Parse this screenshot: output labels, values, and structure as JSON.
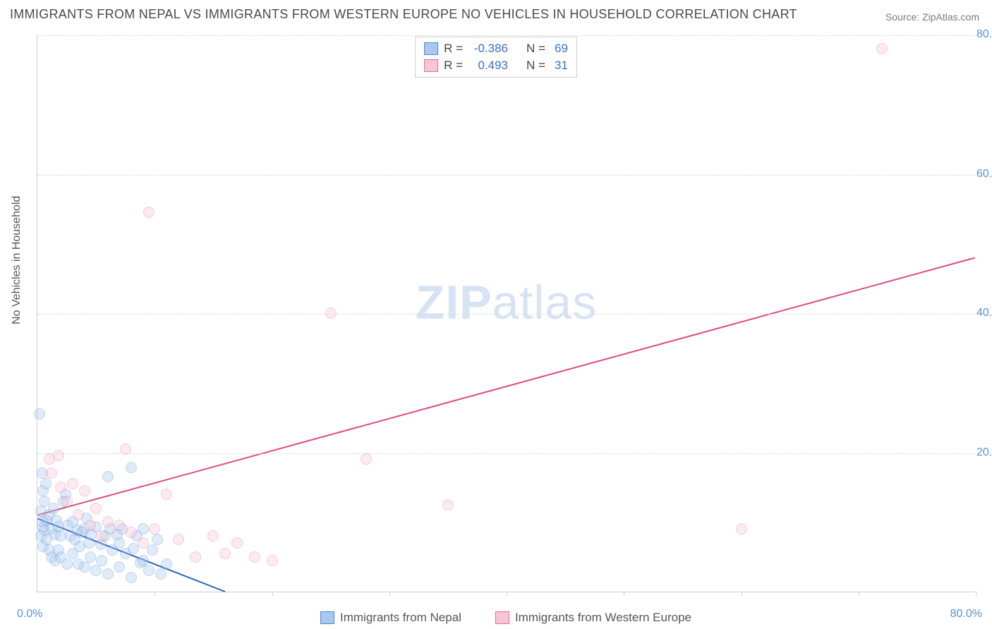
{
  "title": "IMMIGRANTS FROM NEPAL VS IMMIGRANTS FROM WESTERN EUROPE NO VEHICLES IN HOUSEHOLD CORRELATION CHART",
  "source_label": "Source:",
  "source_value": "ZipAtlas.com",
  "ylabel": "No Vehicles in Household",
  "watermark_a": "ZIP",
  "watermark_b": "atlas",
  "chart": {
    "type": "scatter",
    "xlim": [
      0,
      80
    ],
    "ylim": [
      0,
      80
    ],
    "x_origin_label": "0.0%",
    "x_max_label": "80.0%",
    "y_ticks": [
      20,
      40,
      60,
      80
    ],
    "y_tick_labels": [
      "20.0%",
      "40.0%",
      "60.0%",
      "80.0%"
    ],
    "x_minor_ticks": [
      10,
      20,
      30,
      40,
      50,
      60,
      70,
      80
    ],
    "grid_color": "#dcdcdc",
    "axis_color": "#cfcfcf",
    "tick_label_color": "#5b8fd6",
    "background_color": "#ffffff",
    "point_radius": 8,
    "point_opacity": 0.35,
    "line_width": 2,
    "series": [
      {
        "name": "Immigrants from Nepal",
        "color_fill": "#a9c8ef",
        "color_stroke": "#4f86d4",
        "line_color": "#2b5fb5",
        "R": "-0.386",
        "N": "69",
        "trend": {
          "x1": 0,
          "y1": 10.5,
          "x2": 16,
          "y2": 0
        },
        "points": [
          [
            0.2,
            25.5
          ],
          [
            0.4,
            17.0
          ],
          [
            0.5,
            14.5
          ],
          [
            0.6,
            13.0
          ],
          [
            0.7,
            15.5
          ],
          [
            0.3,
            11.5
          ],
          [
            0.4,
            10.0
          ],
          [
            0.5,
            9.2
          ],
          [
            0.6,
            8.8
          ],
          [
            0.8,
            10.2
          ],
          [
            1.0,
            11.0
          ],
          [
            1.2,
            9.0
          ],
          [
            1.4,
            12.0
          ],
          [
            1.5,
            8.2
          ],
          [
            1.6,
            10.2
          ],
          [
            1.8,
            9.3
          ],
          [
            2.0,
            8.0
          ],
          [
            2.2,
            13.0
          ],
          [
            2.4,
            14.0
          ],
          [
            2.6,
            9.5
          ],
          [
            2.8,
            8.0
          ],
          [
            3.0,
            10.0
          ],
          [
            3.2,
            7.5
          ],
          [
            3.4,
            8.8
          ],
          [
            3.6,
            6.5
          ],
          [
            3.8,
            8.5
          ],
          [
            4.0,
            9.0
          ],
          [
            4.2,
            10.5
          ],
          [
            4.4,
            7.0
          ],
          [
            4.6,
            8.2
          ],
          [
            5.0,
            9.3
          ],
          [
            5.4,
            6.8
          ],
          [
            5.8,
            8.0
          ],
          [
            6.0,
            16.5
          ],
          [
            6.2,
            9.0
          ],
          [
            6.4,
            6.0
          ],
          [
            6.8,
            8.2
          ],
          [
            7.0,
            7.0
          ],
          [
            7.2,
            9.0
          ],
          [
            7.5,
            5.5
          ],
          [
            8.0,
            17.8
          ],
          [
            8.2,
            6.2
          ],
          [
            8.5,
            8.0
          ],
          [
            8.8,
            4.2
          ],
          [
            9.0,
            9.0
          ],
          [
            9.5,
            3.0
          ],
          [
            9.8,
            6.0
          ],
          [
            10.2,
            7.5
          ],
          [
            10.5,
            2.5
          ],
          [
            11.0,
            4.0
          ],
          [
            0.3,
            8.0
          ],
          [
            0.5,
            6.5
          ],
          [
            0.8,
            7.5
          ],
          [
            1.0,
            6.0
          ],
          [
            1.2,
            5.0
          ],
          [
            1.5,
            4.5
          ],
          [
            1.8,
            6.0
          ],
          [
            2.0,
            5.0
          ],
          [
            2.5,
            4.0
          ],
          [
            3.0,
            5.5
          ],
          [
            3.5,
            4.0
          ],
          [
            4.0,
            3.5
          ],
          [
            4.5,
            5.0
          ],
          [
            5.0,
            3.0
          ],
          [
            5.5,
            4.5
          ],
          [
            6.0,
            2.5
          ],
          [
            7.0,
            3.5
          ],
          [
            8.0,
            2.0
          ],
          [
            9.0,
            4.5
          ]
        ]
      },
      {
        "name": "Immigrants from Western Europe",
        "color_fill": "#f6c6d4",
        "color_stroke": "#e86a94",
        "line_color": "#e04a7c",
        "R": "0.493",
        "N": "31",
        "trend": {
          "x1": 0,
          "y1": 11,
          "x2": 80,
          "y2": 48
        },
        "points": [
          [
            1.0,
            19.0
          ],
          [
            1.2,
            17.0
          ],
          [
            1.8,
            19.5
          ],
          [
            2.0,
            15.0
          ],
          [
            2.5,
            13.0
          ],
          [
            3.0,
            15.5
          ],
          [
            3.5,
            11.0
          ],
          [
            4.0,
            14.5
          ],
          [
            4.5,
            9.5
          ],
          [
            5.0,
            12.0
          ],
          [
            5.5,
            8.0
          ],
          [
            6.0,
            10.0
          ],
          [
            7.0,
            9.5
          ],
          [
            7.5,
            20.5
          ],
          [
            8.0,
            8.5
          ],
          [
            9.0,
            7.0
          ],
          [
            10.0,
            9.0
          ],
          [
            11.0,
            14.0
          ],
          [
            12.0,
            7.5
          ],
          [
            13.5,
            5.0
          ],
          [
            15.0,
            8.0
          ],
          [
            16.0,
            5.5
          ],
          [
            17.0,
            7.0
          ],
          [
            18.5,
            5.0
          ],
          [
            20.0,
            4.5
          ],
          [
            9.5,
            54.5
          ],
          [
            25.0,
            40.0
          ],
          [
            28.0,
            19.0
          ],
          [
            35.0,
            12.5
          ],
          [
            60.0,
            9.0
          ],
          [
            72.0,
            78.0
          ]
        ]
      }
    ]
  },
  "stats_box": {
    "rows": [
      {
        "swatch_fill": "#a9c8ef",
        "swatch_stroke": "#4f86d4",
        "R": "-0.386",
        "N": "69"
      },
      {
        "swatch_fill": "#f6c6d4",
        "swatch_stroke": "#e86a94",
        "R": "0.493",
        "N": "31"
      }
    ]
  },
  "bottom_legend": [
    {
      "swatch_fill": "#a9c8ef",
      "swatch_stroke": "#4f86d4",
      "label": "Immigrants from Nepal"
    },
    {
      "swatch_fill": "#f6c6d4",
      "swatch_stroke": "#e86a94",
      "label": "Immigrants from Western Europe"
    }
  ]
}
